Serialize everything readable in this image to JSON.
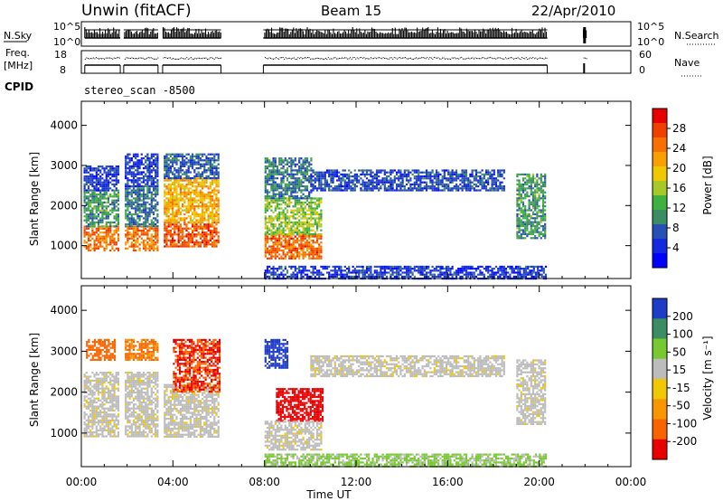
{
  "header": {
    "title": "Unwin (fitACF)",
    "beam": "Beam 15",
    "date": "22/Apr/2010"
  },
  "strips": {
    "nsky_label": "N.Sky",
    "nsky_ticks": [
      "10^5",
      "10^0"
    ],
    "nsearch_label": "N.Search",
    "nsearch_ticks": [
      "10^5",
      "10^0"
    ],
    "freq_label_1": "Freq.",
    "freq_label_2": "[MHz]",
    "freq_ticks": [
      "18",
      "8"
    ],
    "nave_label": "Nave",
    "nave_ticks": [
      "60",
      "0"
    ],
    "cpid_label": "CPID",
    "cpid_value": "stereo_scan -8500"
  },
  "power_colorbar": {
    "label": "Power [dB]",
    "ticks": [
      "28",
      "24",
      "20",
      "16",
      "12",
      "8",
      "4"
    ],
    "colors": [
      "#e80000",
      "#f04000",
      "#f87000",
      "#f8a000",
      "#f0c800",
      "#a8c828",
      "#40b040",
      "#3c8c64",
      "#2850b4",
      "#1428e0",
      "#0000ff"
    ]
  },
  "velocity_colorbar": {
    "label": "Velocity [m s⁻¹]",
    "ticks": [
      "200",
      "100",
      "50",
      "15",
      "-15",
      "-50",
      "-100",
      "-200"
    ],
    "colors": [
      "#1e3cc8",
      "#3c8c64",
      "#78c832",
      "#bcbcbc",
      "#f0c800",
      "#f89600",
      "#f86400",
      "#e80000"
    ]
  },
  "chart_data": {
    "type": "heatmap",
    "xlabel": "Time UT",
    "x_ticks": [
      "00:00",
      "04:00",
      "08:00",
      "12:00",
      "16:00",
      "20:00",
      "00:00"
    ],
    "xlim_hours": [
      0,
      24
    ],
    "ylabel": "Slant Range [km]",
    "y_ticks": [
      1000,
      2000,
      3000,
      4000
    ],
    "ylim_km": [
      180,
      4600
    ],
    "data_gaps_hours": [
      [
        1.7,
        1.85
      ],
      [
        3.35,
        3.55
      ],
      [
        6.1,
        7.95
      ],
      [
        20.35,
        21.9
      ],
      [
        22.05,
        24
      ]
    ],
    "panels": [
      {
        "name": "power",
        "regions": [
          {
            "t": [
              0.1,
              1.6
            ],
            "r": [
              900,
              1500
            ],
            "level": 24
          },
          {
            "t": [
              0.1,
              1.6
            ],
            "r": [
              1500,
              2400
            ],
            "level": 10
          },
          {
            "t": [
              0.1,
              1.6
            ],
            "r": [
              2400,
              3000
            ],
            "level": 4
          },
          {
            "t": [
              1.9,
              3.3
            ],
            "r": [
              900,
              1500
            ],
            "level": 24
          },
          {
            "t": [
              1.9,
              3.3
            ],
            "r": [
              1500,
              2500
            ],
            "level": 8
          },
          {
            "t": [
              1.9,
              3.3
            ],
            "r": [
              2500,
              3300
            ],
            "level": 4
          },
          {
            "t": [
              3.6,
              6.0
            ],
            "r": [
              1000,
              1600
            ],
            "level": 26
          },
          {
            "t": [
              3.6,
              6.0
            ],
            "r": [
              1600,
              2700
            ],
            "level": 20
          },
          {
            "t": [
              3.6,
              6.0
            ],
            "r": [
              2700,
              3300
            ],
            "level": 6
          },
          {
            "t": [
              8.0,
              10.5
            ],
            "r": [
              700,
              1300
            ],
            "level": 25
          },
          {
            "t": [
              8.0,
              10.5
            ],
            "r": [
              1300,
              2200
            ],
            "level": 14
          },
          {
            "t": [
              8.0,
              10.0
            ],
            "r": [
              2200,
              3200
            ],
            "level": 8
          },
          {
            "t": [
              10.0,
              18.5
            ],
            "r": [
              2400,
              2900
            ],
            "level": 5
          },
          {
            "t": [
              19.0,
              20.3
            ],
            "r": [
              1200,
              2800
            ],
            "level": 10
          },
          {
            "t": [
              8.0,
              20.3
            ],
            "r": [
              200,
              500
            ],
            "level": 4
          }
        ]
      },
      {
        "name": "velocity",
        "regions": [
          {
            "t": [
              0.1,
              1.6
            ],
            "r": [
              900,
              2500
            ],
            "value": 0
          },
          {
            "t": [
              0.2,
              1.5
            ],
            "r": [
              2800,
              3300
            ],
            "value": -120
          },
          {
            "t": [
              1.9,
              3.3
            ],
            "r": [
              900,
              2500
            ],
            "value": 0
          },
          {
            "t": [
              1.9,
              3.3
            ],
            "r": [
              2800,
              3300
            ],
            "value": -80
          },
          {
            "t": [
              3.6,
              6.0
            ],
            "r": [
              900,
              2200
            ],
            "value": 0
          },
          {
            "t": [
              4.0,
              6.0
            ],
            "r": [
              2000,
              3300
            ],
            "value": -150
          },
          {
            "t": [
              8.0,
              9.0
            ],
            "r": [
              2600,
              3300
            ],
            "value": 200
          },
          {
            "t": [
              8.5,
              10.5
            ],
            "r": [
              1300,
              2100
            ],
            "value": -180
          },
          {
            "t": [
              8.0,
              10.5
            ],
            "r": [
              600,
              1300
            ],
            "value": 0
          },
          {
            "t": [
              10.0,
              18.5
            ],
            "r": [
              2400,
              2900
            ],
            "value": 0
          },
          {
            "t": [
              19.0,
              20.3
            ],
            "r": [
              1200,
              2800
            ],
            "value": 0
          },
          {
            "t": [
              8.0,
              20.3
            ],
            "r": [
              200,
              500
            ],
            "value": 40
          }
        ]
      }
    ]
  }
}
